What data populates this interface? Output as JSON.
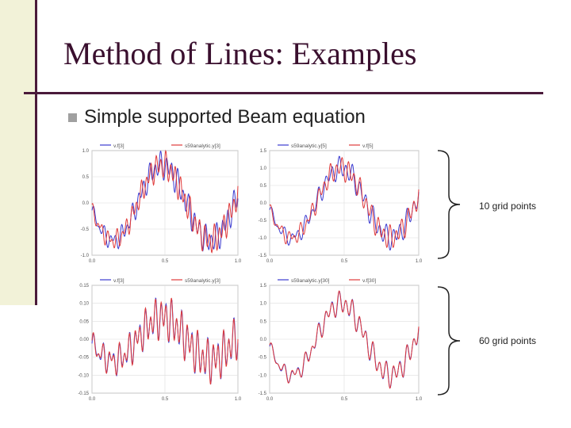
{
  "slide": {
    "title": "Method of Lines: Examples",
    "bullet": "Simple supported Beam equation"
  },
  "groups": [
    {
      "label": "10 grid points"
    },
    {
      "label": "60 grid points"
    }
  ],
  "colors": {
    "series_red": "#e03a3a",
    "series_blue": "#3a3ad0",
    "title": "#3a0f2e"
  },
  "chart_data": [
    {
      "type": "line",
      "legend": [
        "v.f[3]",
        "s59analytic.y[3]"
      ],
      "x_ticks": [
        "0.0",
        "0.5",
        "1.0"
      ],
      "y_ticks": [
        "1.0",
        "0.5",
        "0.0",
        "-0.5",
        "-1.0"
      ],
      "xlim": [
        0,
        1
      ],
      "ylim": [
        -1.0,
        1.0
      ],
      "series": [
        {
          "color": "#3a3ad0",
          "amp": 0.72,
          "freq": 2,
          "hf_amp": 0.2,
          "hf_freq": 26,
          "phase": 0
        },
        {
          "color": "#e03a3a",
          "amp": 0.72,
          "freq": 2,
          "hf_amp": 0.2,
          "hf_freq": 30,
          "phase": 0.5
        }
      ]
    },
    {
      "type": "line",
      "legend": [
        "s59analytic.y[5]",
        "v.f[5]"
      ],
      "x_ticks": [
        "0.0",
        "0.5",
        "1.0"
      ],
      "y_ticks": [
        "1.5",
        "1.0",
        "0.5",
        "0.0",
        "-0.5",
        "-1.0",
        "-1.5"
      ],
      "xlim": [
        0,
        1
      ],
      "ylim": [
        -1.5,
        1.5
      ],
      "series": [
        {
          "color": "#3a3ad0",
          "amp": 1.0,
          "freq": 2,
          "hf_amp": 0.25,
          "hf_freq": 22,
          "phase": 0
        },
        {
          "color": "#e03a3a",
          "amp": 1.0,
          "freq": 2,
          "hf_amp": 0.25,
          "hf_freq": 25,
          "phase": 0.4
        }
      ]
    },
    {
      "type": "line",
      "legend": [
        "v.f[3]",
        "s59analytic.y[3]"
      ],
      "x_ticks": [
        "0.0",
        "0.5",
        "1.0"
      ],
      "y_ticks": [
        "0.15",
        "0.10",
        "0.05",
        "0.00",
        "-0.05",
        "-0.10",
        "-0.15"
      ],
      "xlim": [
        0,
        1
      ],
      "ylim": [
        -0.15,
        0.15
      ],
      "series": [
        {
          "color": "#3a3ad0",
          "amp": 0.06,
          "freq": 2,
          "hf_amp": 0.045,
          "hf_freq": 28,
          "phase": 0
        },
        {
          "color": "#e03a3a",
          "amp": 0.06,
          "freq": 2,
          "hf_amp": 0.045,
          "hf_freq": 28,
          "phase": 0.15
        }
      ]
    },
    {
      "type": "line",
      "legend": [
        "s59analytic.y[30]",
        "v.f[30]"
      ],
      "x_ticks": [
        "0.0",
        "0.5",
        "1.0"
      ],
      "y_ticks": [
        "1.5",
        "1.0",
        "0.5",
        "0.0",
        "-0.5",
        "-1.0",
        "-1.5"
      ],
      "xlim": [
        0,
        1
      ],
      "ylim": [
        -1.5,
        1.5
      ],
      "series": [
        {
          "color": "#3a3ad0",
          "amp": 1.0,
          "freq": 2,
          "hf_amp": 0.25,
          "hf_freq": 22,
          "phase": 0
        },
        {
          "color": "#e03a3a",
          "amp": 1.0,
          "freq": 2,
          "hf_amp": 0.25,
          "hf_freq": 22,
          "phase": 0.12
        }
      ]
    }
  ]
}
